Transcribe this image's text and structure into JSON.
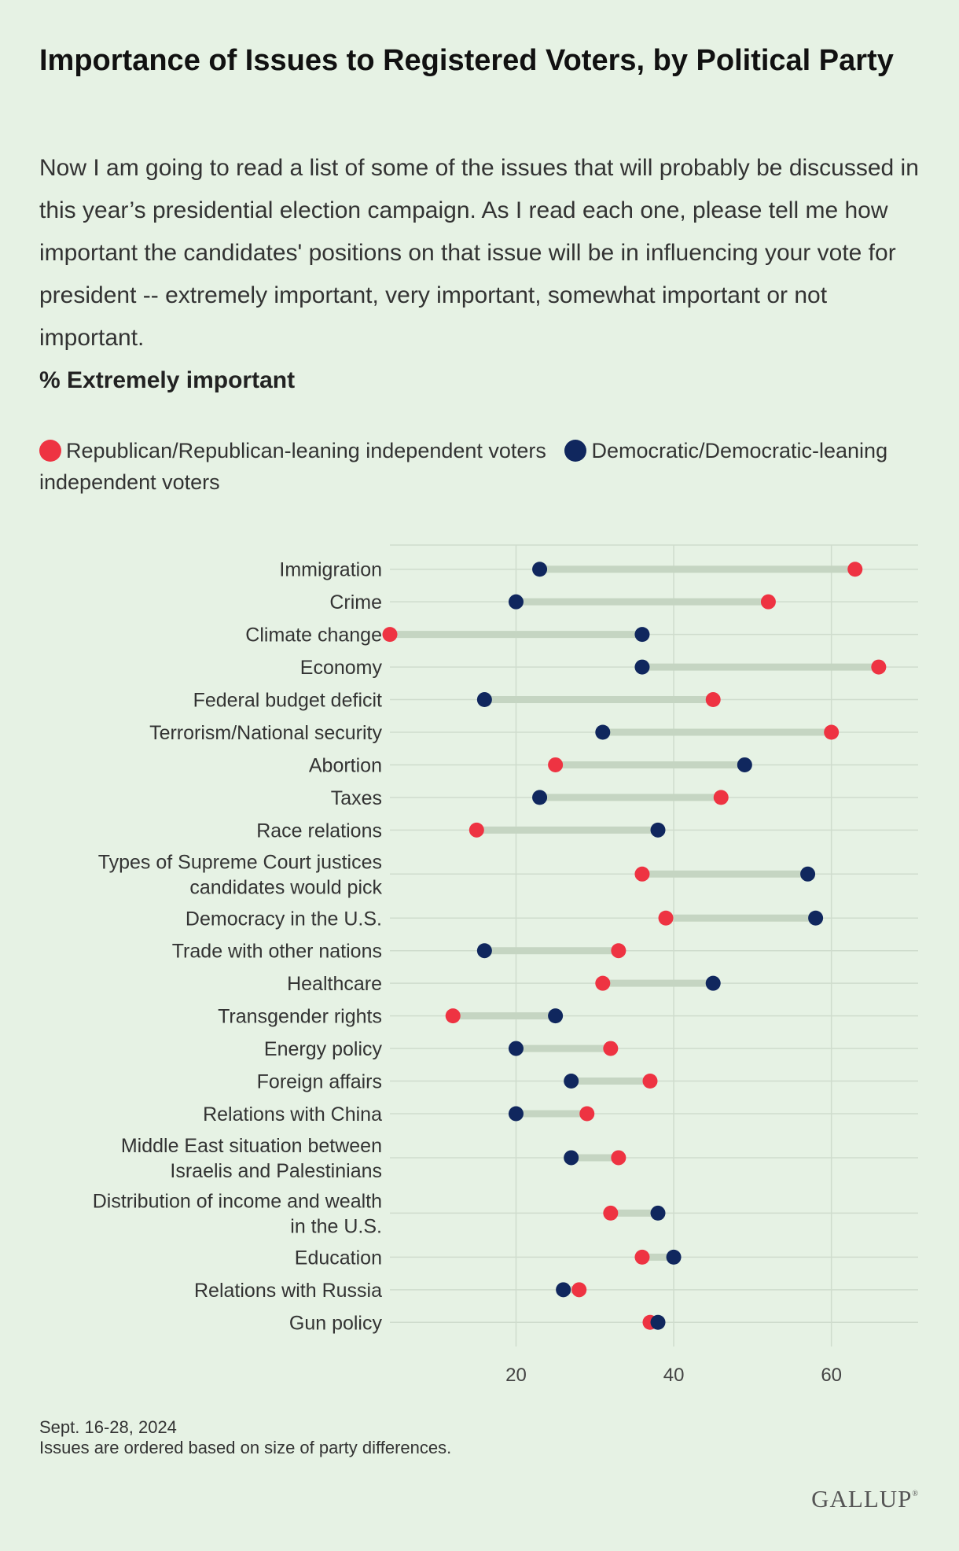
{
  "title": "Importance of Issues to Registered Voters, by Political Party",
  "subtitle": "Now I am going to read a list of some of the issues that will probably be discussed in this year’s presidential election campaign. As I read each one, please tell me how important the candidates' positions on that issue will be in influencing your vote for president -- extremely important, very important, somewhat important or not important.",
  "measure": "% Extremely important",
  "legend": {
    "rep_label": "Republican/Republican-leaning independent voters",
    "dem_label": "Democratic/Democratic-leaning independent voters"
  },
  "colors": {
    "republican": "#ee3342",
    "democrat": "#10275e",
    "connector": "#c5d5c2",
    "grid": "#cfdccd",
    "axis": "#b9c7b6"
  },
  "footnote": {
    "date": "Sept. 16-28, 2024",
    "note": "Issues are ordered based on size of party differences."
  },
  "logo": "GALLUP",
  "chart_data": {
    "type": "dumbbell",
    "x_ticks": [
      20,
      40,
      60
    ],
    "xlim": [
      4,
      71
    ],
    "series": [
      {
        "name": "Republican/Republican-leaning independent voters",
        "key": "rep"
      },
      {
        "name": "Democratic/Democratic-leaning independent voters",
        "key": "dem"
      }
    ],
    "items": [
      {
        "label": [
          "Immigration"
        ],
        "rep": 63,
        "dem": 23
      },
      {
        "label": [
          "Crime"
        ],
        "rep": 52,
        "dem": 20
      },
      {
        "label": [
          "Climate change"
        ],
        "rep": 4,
        "dem": 36
      },
      {
        "label": [
          "Economy"
        ],
        "rep": 66,
        "dem": 36
      },
      {
        "label": [
          "Federal budget deficit"
        ],
        "rep": 45,
        "dem": 16
      },
      {
        "label": [
          "Terrorism/National security"
        ],
        "rep": 60,
        "dem": 31
      },
      {
        "label": [
          "Abortion"
        ],
        "rep": 25,
        "dem": 49
      },
      {
        "label": [
          "Taxes"
        ],
        "rep": 46,
        "dem": 23
      },
      {
        "label": [
          "Race relations"
        ],
        "rep": 15,
        "dem": 38
      },
      {
        "label": [
          "Types of Supreme Court justices",
          "candidates would pick"
        ],
        "rep": 36,
        "dem": 57
      },
      {
        "label": [
          "Democracy in the U.S."
        ],
        "rep": 39,
        "dem": 58
      },
      {
        "label": [
          "Trade with other nations"
        ],
        "rep": 33,
        "dem": 16
      },
      {
        "label": [
          "Healthcare"
        ],
        "rep": 31,
        "dem": 45
      },
      {
        "label": [
          "Transgender rights"
        ],
        "rep": 12,
        "dem": 25
      },
      {
        "label": [
          "Energy policy"
        ],
        "rep": 32,
        "dem": 20
      },
      {
        "label": [
          "Foreign affairs"
        ],
        "rep": 37,
        "dem": 27
      },
      {
        "label": [
          "Relations with China"
        ],
        "rep": 29,
        "dem": 20
      },
      {
        "label": [
          "Middle East situation between",
          "Israelis and Palestinians"
        ],
        "rep": 33,
        "dem": 27
      },
      {
        "label": [
          "Distribution of income and wealth",
          "in the U.S."
        ],
        "rep": 32,
        "dem": 38
      },
      {
        "label": [
          "Education"
        ],
        "rep": 36,
        "dem": 40
      },
      {
        "label": [
          "Relations with Russia"
        ],
        "rep": 28,
        "dem": 26
      },
      {
        "label": [
          "Gun policy"
        ],
        "rep": 37,
        "dem": 38
      }
    ]
  }
}
